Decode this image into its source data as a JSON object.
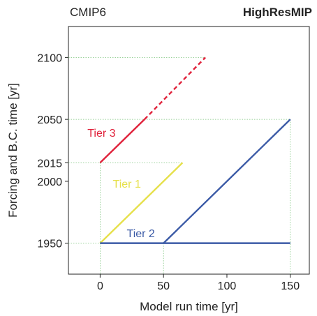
{
  "header": {
    "left": "CMIP6",
    "right": "HighResMIP"
  },
  "chart_data": {
    "type": "line",
    "xlabel": "Model run time [yr]",
    "ylabel": "Forcing and B.C. time [yr]",
    "xlim": [
      -25,
      165
    ],
    "ylim": [
      1925,
      2125
    ],
    "x_ticks": [
      "0",
      "50",
      "100",
      "150"
    ],
    "y_ticks": [
      "1950",
      "2000",
      "2015",
      "2050",
      "2100"
    ],
    "x_tick_values": [
      0,
      50,
      100,
      150
    ],
    "y_tick_values": [
      1950,
      2000,
      2015,
      2050,
      2100
    ],
    "grid": "dotted guide lines at key values",
    "series": [
      {
        "name": "Tier 1",
        "color": "#e6e04a",
        "points": [
          [
            0,
            1950
          ],
          [
            65,
            2015
          ]
        ],
        "dashed_from": null
      },
      {
        "name": "Tier 2",
        "color": "#3b5aa6",
        "points": [
          [
            0,
            1950
          ],
          [
            150,
            1950
          ]
        ],
        "dashed_from": null
      },
      {
        "name": "Tier 2",
        "color": "#3b5aa6",
        "points": [
          [
            50,
            1950
          ],
          [
            150,
            2050
          ]
        ],
        "dashed_from": null
      },
      {
        "name": "Tier 3",
        "color": "#e0213a",
        "points": [
          [
            0,
            2015
          ],
          [
            35,
            2050
          ]
        ],
        "dashed_from": null
      },
      {
        "name": "Tier 3",
        "color": "#e0213a",
        "points": [
          [
            35,
            2050
          ],
          [
            83,
            2100
          ]
        ],
        "dashed": true
      }
    ],
    "labels": [
      {
        "text": "Tier 1",
        "color": "#e6e04a"
      },
      {
        "text": "Tier 2",
        "color": "#3b5aa6"
      },
      {
        "text": "Tier 3",
        "color": "#e0213a"
      }
    ],
    "guides": [
      {
        "x1": -25,
        "y1": 2100,
        "x2": 83,
        "y2": 2100
      },
      {
        "x1": -25,
        "y1": 2050,
        "x2": 150,
        "y2": 2050
      },
      {
        "x1": -25,
        "y1": 2015,
        "x2": 65,
        "y2": 2015
      },
      {
        "x1": -25,
        "y1": 1950,
        "x2": 0,
        "y2": 1950
      },
      {
        "x1": 0,
        "y1": 2015,
        "x2": 0,
        "y2": 1925
      },
      {
        "x1": 50,
        "y1": 1950,
        "x2": 50,
        "y2": 1925
      },
      {
        "x1": 150,
        "y1": 2050,
        "x2": 150,
        "y2": 1925
      }
    ]
  }
}
